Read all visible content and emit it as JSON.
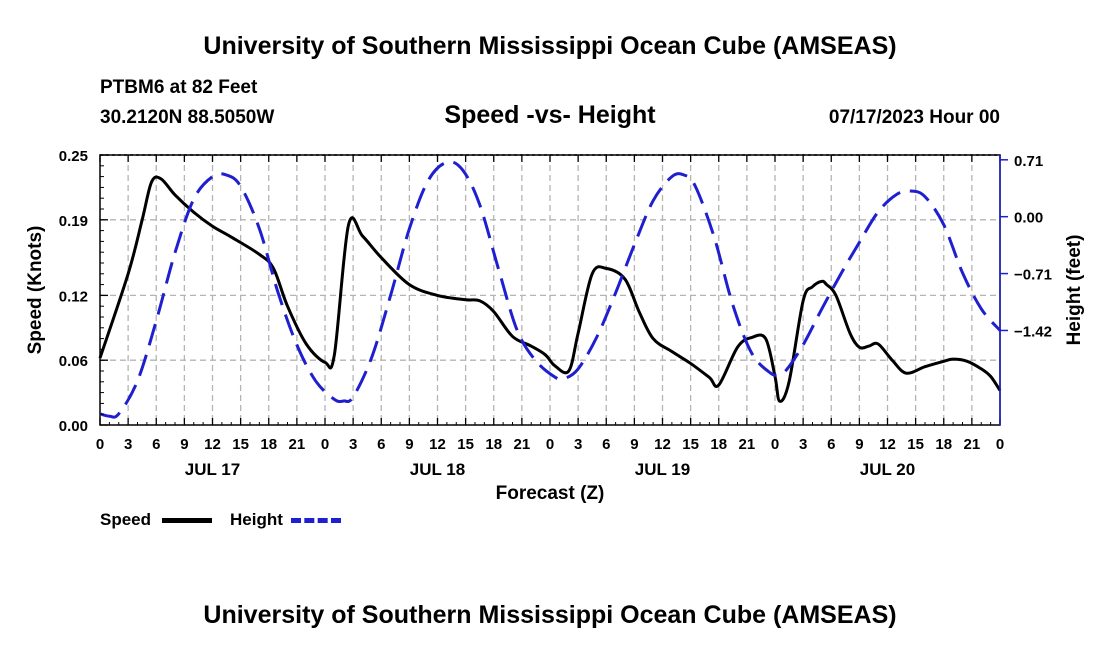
{
  "header": {
    "title": "University of Southern Mississippi Ocean Cube (AMSEAS)",
    "station": "PTBM6 at 82 Feet",
    "coords": "30.2120N  88.5050W",
    "date": "07/17/2023 Hour 00"
  },
  "footer": {
    "title": "University of Southern Mississippi Ocean Cube (AMSEAS)"
  },
  "colors": {
    "speed": "#000000",
    "height": "#1f1fd0",
    "grid": "#b4b4b4"
  },
  "chart_data": {
    "type": "line",
    "title": "Speed -vs- Height",
    "xlabel": "Forecast (Z)",
    "ylabel_left": "Speed (Knots)",
    "ylabel_right": "Height (feet)",
    "x_range_hours": [
      0,
      96
    ],
    "x_tick_step_hours": 3,
    "x_tick_labels": [
      "0",
      "3",
      "6",
      "9",
      "12",
      "15",
      "18",
      "21",
      "0",
      "3",
      "6",
      "9",
      "12",
      "15",
      "18",
      "21",
      "0",
      "3",
      "6",
      "9",
      "12",
      "15",
      "18",
      "21",
      "0",
      "3",
      "6",
      "9",
      "12",
      "15",
      "18",
      "21",
      "0"
    ],
    "day_labels": [
      {
        "label": "JUL 17",
        "hour": 12
      },
      {
        "label": "JUL 18",
        "hour": 36
      },
      {
        "label": "JUL 19",
        "hour": 60
      },
      {
        "label": "JUL 20",
        "hour": 84
      }
    ],
    "ylim_left": [
      0,
      0.25
    ],
    "yticks_left": [
      0.0,
      0.06,
      0.12,
      0.19,
      0.25
    ],
    "ytick_labels_left": [
      "0.00",
      "0.06",
      "0.12",
      "0.19",
      "0.25"
    ],
    "ylim_right": [
      -2.6,
      0.77
    ],
    "yticks_right": [
      0.71,
      0.0,
      -0.71,
      -1.42
    ],
    "ytick_labels_right": [
      "0.71",
      "0.00",
      "−0.71",
      "−1.42"
    ],
    "series": [
      {
        "name": "Speed",
        "axis": "left",
        "style": "solid",
        "hours": [
          0,
          3,
          4.5,
          5.5,
          6.5,
          8,
          10,
          12,
          14,
          17,
          18.5,
          20,
          22,
          24,
          25,
          26.5,
          28,
          30,
          33,
          36,
          39,
          40.5,
          42,
          44,
          46,
          47.5,
          48.5,
          50,
          51,
          52.5,
          54,
          56,
          57.5,
          59,
          61,
          63,
          65,
          66,
          68,
          69.5,
          71,
          72,
          72.5,
          73.5,
          75,
          76,
          77,
          77.5,
          78.5,
          80,
          81,
          82,
          83,
          84.5,
          86,
          88,
          90,
          91,
          92.5,
          94,
          95,
          96
        ],
        "values": [
          0.062,
          0.14,
          0.19,
          0.225,
          0.228,
          0.213,
          0.197,
          0.184,
          0.174,
          0.158,
          0.145,
          0.11,
          0.075,
          0.058,
          0.065,
          0.185,
          0.175,
          0.155,
          0.13,
          0.12,
          0.116,
          0.115,
          0.105,
          0.082,
          0.073,
          0.065,
          0.055,
          0.05,
          0.085,
          0.14,
          0.145,
          0.135,
          0.105,
          0.08,
          0.068,
          0.057,
          0.044,
          0.037,
          0.072,
          0.081,
          0.08,
          0.045,
          0.022,
          0.04,
          0.115,
          0.128,
          0.133,
          0.13,
          0.12,
          0.085,
          0.072,
          0.073,
          0.075,
          0.06,
          0.048,
          0.054,
          0.059,
          0.061,
          0.059,
          0.052,
          0.045,
          0.032
        ]
      },
      {
        "name": "Height",
        "axis": "right",
        "style": "dashed",
        "hours": [
          0,
          1,
          2,
          4,
          6,
          8,
          10,
          12,
          13.5,
          15,
          17,
          19,
          21,
          23,
          25,
          26,
          27,
          29,
          31,
          33,
          35,
          37,
          38.7,
          40.5,
          42.5,
          44.5,
          46.5,
          48.5,
          49.5,
          51,
          53,
          55,
          57,
          59,
          61,
          62.3,
          63.5,
          65.5,
          67.5,
          69.5,
          71.5,
          72.5,
          73.3,
          75,
          77,
          79,
          81,
          83,
          85,
          86.5,
          88,
          90,
          92,
          94,
          96
        ],
        "values": [
          -2.46,
          -2.49,
          -2.46,
          -2.05,
          -1.3,
          -0.45,
          0.22,
          0.5,
          0.52,
          0.38,
          -0.15,
          -0.95,
          -1.6,
          -2.05,
          -2.28,
          -2.3,
          -2.25,
          -1.75,
          -0.98,
          -0.15,
          0.45,
          0.68,
          0.58,
          0.15,
          -0.65,
          -1.42,
          -1.8,
          -2.0,
          -2.02,
          -1.9,
          -1.5,
          -0.95,
          -0.35,
          0.2,
          0.5,
          0.52,
          0.38,
          -0.25,
          -1.1,
          -1.7,
          -1.95,
          -1.97,
          -1.9,
          -1.6,
          -1.15,
          -0.72,
          -0.32,
          0.06,
          0.28,
          0.32,
          0.25,
          -0.1,
          -0.7,
          -1.15,
          -1.42
        ]
      }
    ],
    "legend": [
      {
        "label": "Speed",
        "color": "#000000",
        "style": "solid"
      },
      {
        "label": "Height",
        "color": "#1f1fd0",
        "style": "dashed"
      }
    ]
  }
}
